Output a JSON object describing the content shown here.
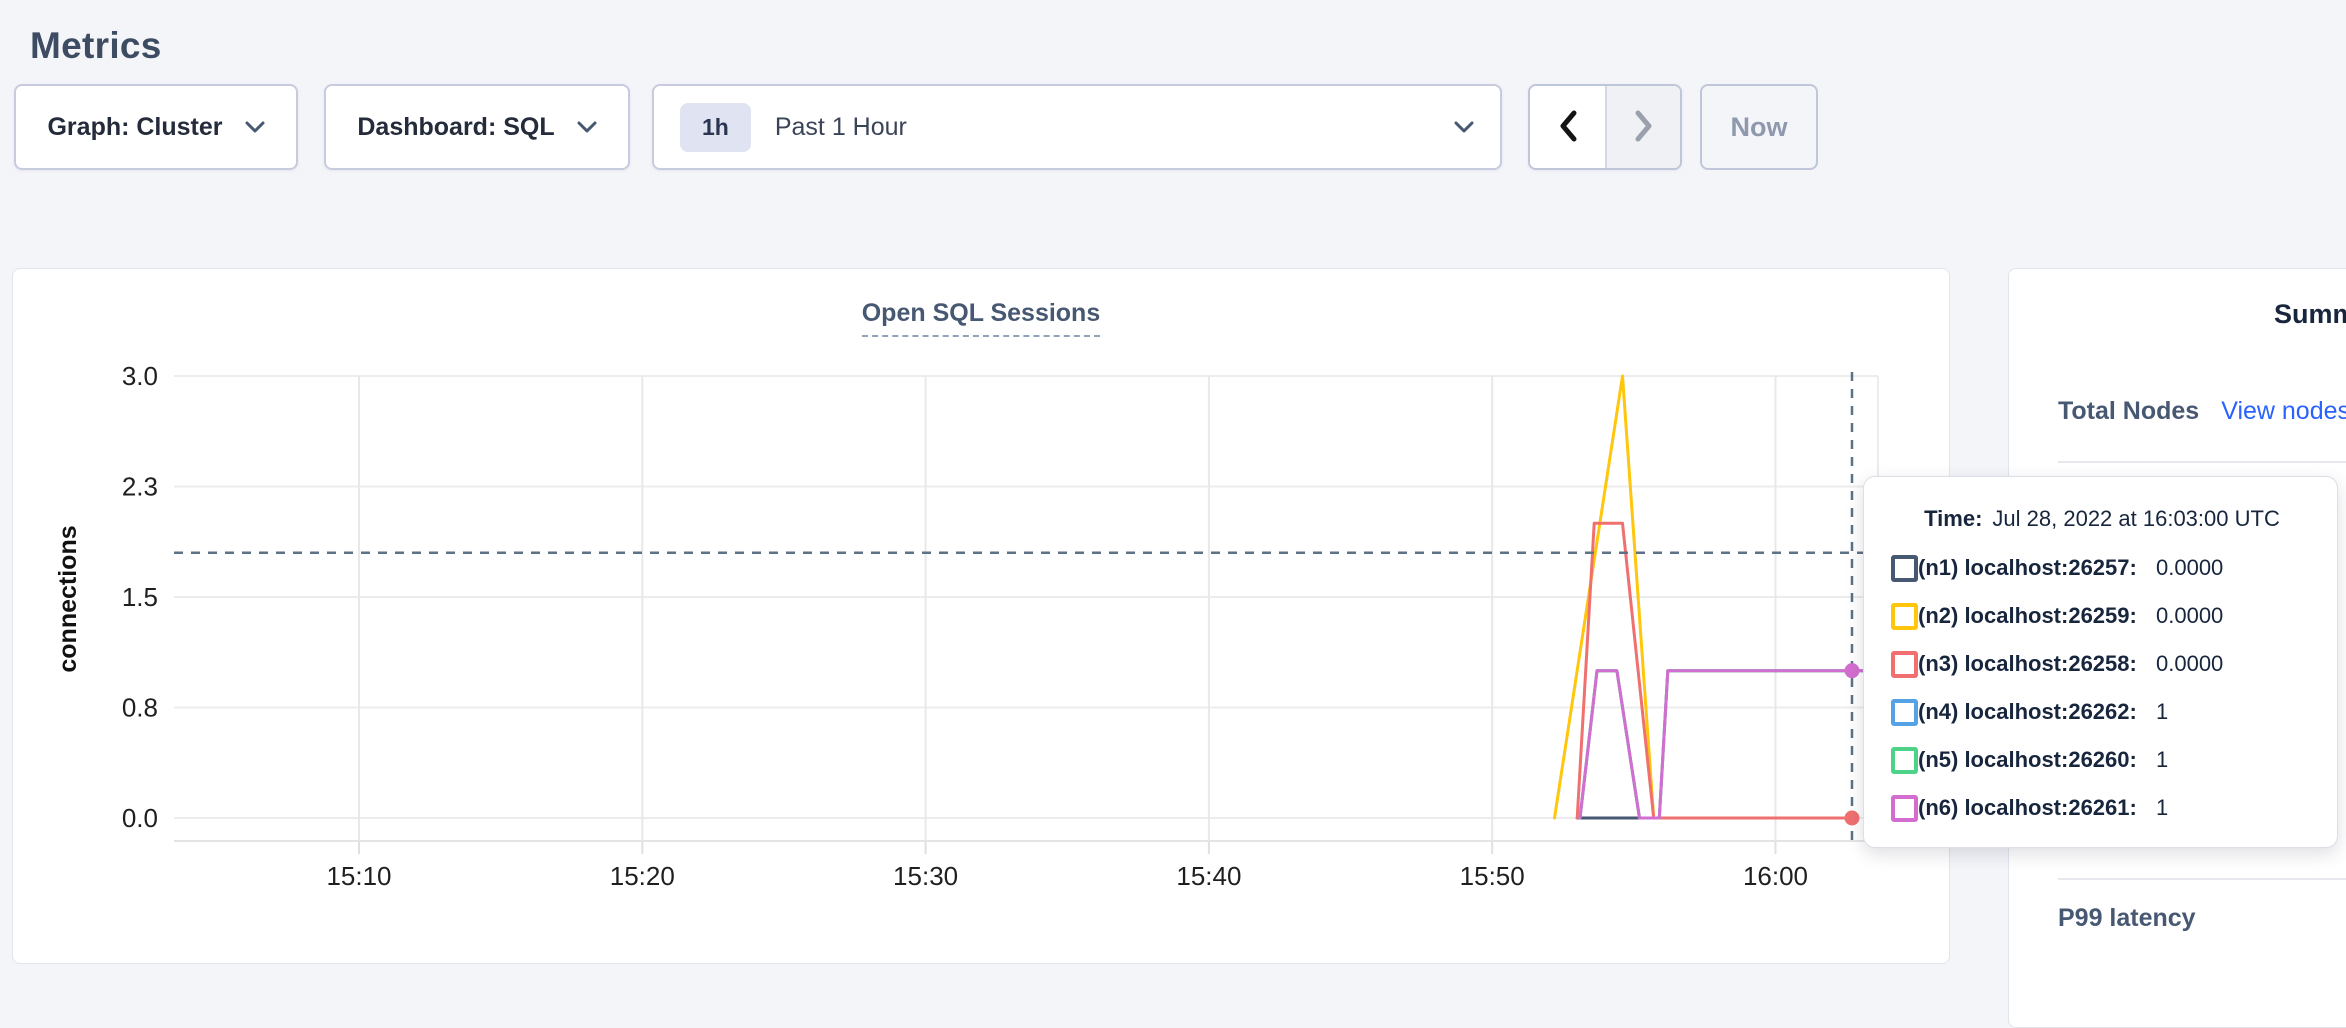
{
  "page": {
    "title": "Metrics"
  },
  "toolbar": {
    "graph_label": "Graph: Cluster",
    "dashboard_label": "Dashboard: SQL",
    "time_badge": "1h",
    "time_label": "Past 1 Hour",
    "now_label": "Now"
  },
  "chart_data": {
    "type": "line",
    "title": "Open SQL Sessions",
    "ylabel": "connections",
    "ylim": [
      0,
      3
    ],
    "grid": true,
    "x_tick_minutes_after_1500": [
      10,
      20,
      30,
      40,
      50,
      60
    ],
    "x_tick_labels": [
      "15:10",
      "15:20",
      "15:30",
      "15:40",
      "15:50",
      "16:00"
    ],
    "y_ticks": [
      {
        "v": 0,
        "label": "0.0"
      },
      {
        "v": 0.75,
        "label": "0.8"
      },
      {
        "v": 1.5,
        "label": "1.5"
      },
      {
        "v": 2.25,
        "label": "2.3"
      },
      {
        "v": 3,
        "label": "3.0"
      }
    ],
    "series": [
      {
        "name": "(n1) localhost:26257",
        "color": "#475872",
        "points": [
          [
            53.0,
            0
          ],
          [
            62.9,
            0
          ]
        ]
      },
      {
        "name": "(n2) localhost:26259",
        "color": "#ffc60b",
        "points": [
          [
            52.2,
            0
          ],
          [
            54.6,
            3
          ],
          [
            55.7,
            0
          ],
          [
            62.9,
            0
          ]
        ]
      },
      {
        "name": "(n3) localhost:26258",
        "color": "#f07070",
        "points": [
          [
            53.0,
            0
          ],
          [
            53.6,
            2
          ],
          [
            54.6,
            2
          ],
          [
            55.7,
            0
          ],
          [
            62.9,
            0
          ]
        ]
      },
      {
        "name": "(n4) localhost:26262",
        "color": "#55a3e4",
        "points": [
          [
            53.1,
            0
          ],
          [
            53.7,
            1
          ],
          [
            54.4,
            1
          ],
          [
            55.2,
            0
          ],
          [
            55.9,
            0
          ],
          [
            56.2,
            1
          ],
          [
            63.6,
            1
          ]
        ]
      },
      {
        "name": "(n5) localhost:26260",
        "color": "#4dd388",
        "points": [
          [
            53.1,
            0
          ],
          [
            53.7,
            1
          ],
          [
            54.4,
            1
          ],
          [
            55.2,
            0
          ],
          [
            55.9,
            0
          ],
          [
            56.2,
            1
          ],
          [
            63.6,
            1
          ]
        ]
      },
      {
        "name": "(n6) localhost:26261",
        "color": "#d36ed0",
        "points": [
          [
            53.1,
            0
          ],
          [
            53.7,
            1
          ],
          [
            54.4,
            1
          ],
          [
            55.2,
            0
          ],
          [
            55.9,
            0
          ],
          [
            56.2,
            1
          ],
          [
            63.6,
            1
          ]
        ]
      }
    ],
    "crosshair": {
      "t_min": 62.7,
      "hover_value": 1.8,
      "dots": [
        {
          "series": "(n6) localhost:26261",
          "color": "#d36ed0",
          "v": 1
        },
        {
          "series": "(n3) localhost:26258",
          "color": "#f07070",
          "v": 0
        }
      ]
    }
  },
  "tooltip": {
    "time_label": "Time:",
    "time_value": "Jul 28, 2022 at 16:03:00 UTC",
    "rows": [
      {
        "label": "(n1) localhost:26257:",
        "value": "0.0000",
        "color": "#475872"
      },
      {
        "label": "(n2) localhost:26259:",
        "value": "0.0000",
        "color": "#ffc60b"
      },
      {
        "label": "(n3) localhost:26258:",
        "value": "0.0000",
        "color": "#f07070"
      },
      {
        "label": "(n4) localhost:26262:",
        "value": "1",
        "color": "#55a3e4"
      },
      {
        "label": "(n5) localhost:26260:",
        "value": "1",
        "color": "#4dd388"
      },
      {
        "label": "(n6) localhost:26261:",
        "value": "1",
        "color": "#d36ed0"
      }
    ]
  },
  "sidebar": {
    "heading": "Summary",
    "total_nodes_label": "Total Nodes",
    "view_nodes_link": "View nodes",
    "p99_label": "P99 latency"
  }
}
